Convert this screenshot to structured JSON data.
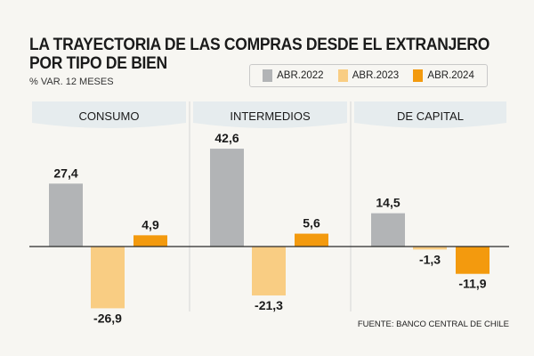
{
  "title_line1": "LA TRAYECTORIA DE LAS COMPRAS DESDE EL EXTRANJERO",
  "title_line2": "POR TIPO DE BIEN",
  "subtitle": "% VAR. 12 MESES",
  "source": "FUENTE: BANCO CENTRAL DE CHILE",
  "colors": {
    "abr2022": "#b2b4b6",
    "abr2023": "#f9cd83",
    "abr2024": "#f39a0e",
    "panel_header": "#e6ecee"
  },
  "chart_data": {
    "type": "bar",
    "title": "LA TRAYECTORIA DE LAS COMPRAS DESDE EL EXTRANJERO POR TIPO DE BIEN",
    "ylabel": "% VAR. 12 MESES",
    "categories": [
      "CONSUMO",
      "INTERMEDIOS",
      "DE CAPITAL"
    ],
    "series": [
      {
        "name": "ABR.2022",
        "values": [
          27.4,
          42.6,
          14.5
        ],
        "labels": [
          "27,4",
          "42,6",
          "14,5"
        ]
      },
      {
        "name": "ABR.2023",
        "values": [
          -26.9,
          -21.3,
          -1.3
        ],
        "labels": [
          "-26,9",
          "-21,3",
          "-1,3"
        ]
      },
      {
        "name": "ABR.2024",
        "values": [
          4.9,
          5.6,
          -11.9
        ],
        "labels": [
          "4,9",
          "5,6",
          "-11,9"
        ]
      }
    ],
    "ylim": [
      -30,
      46
    ],
    "grid": false,
    "legend_position": "top-right"
  }
}
